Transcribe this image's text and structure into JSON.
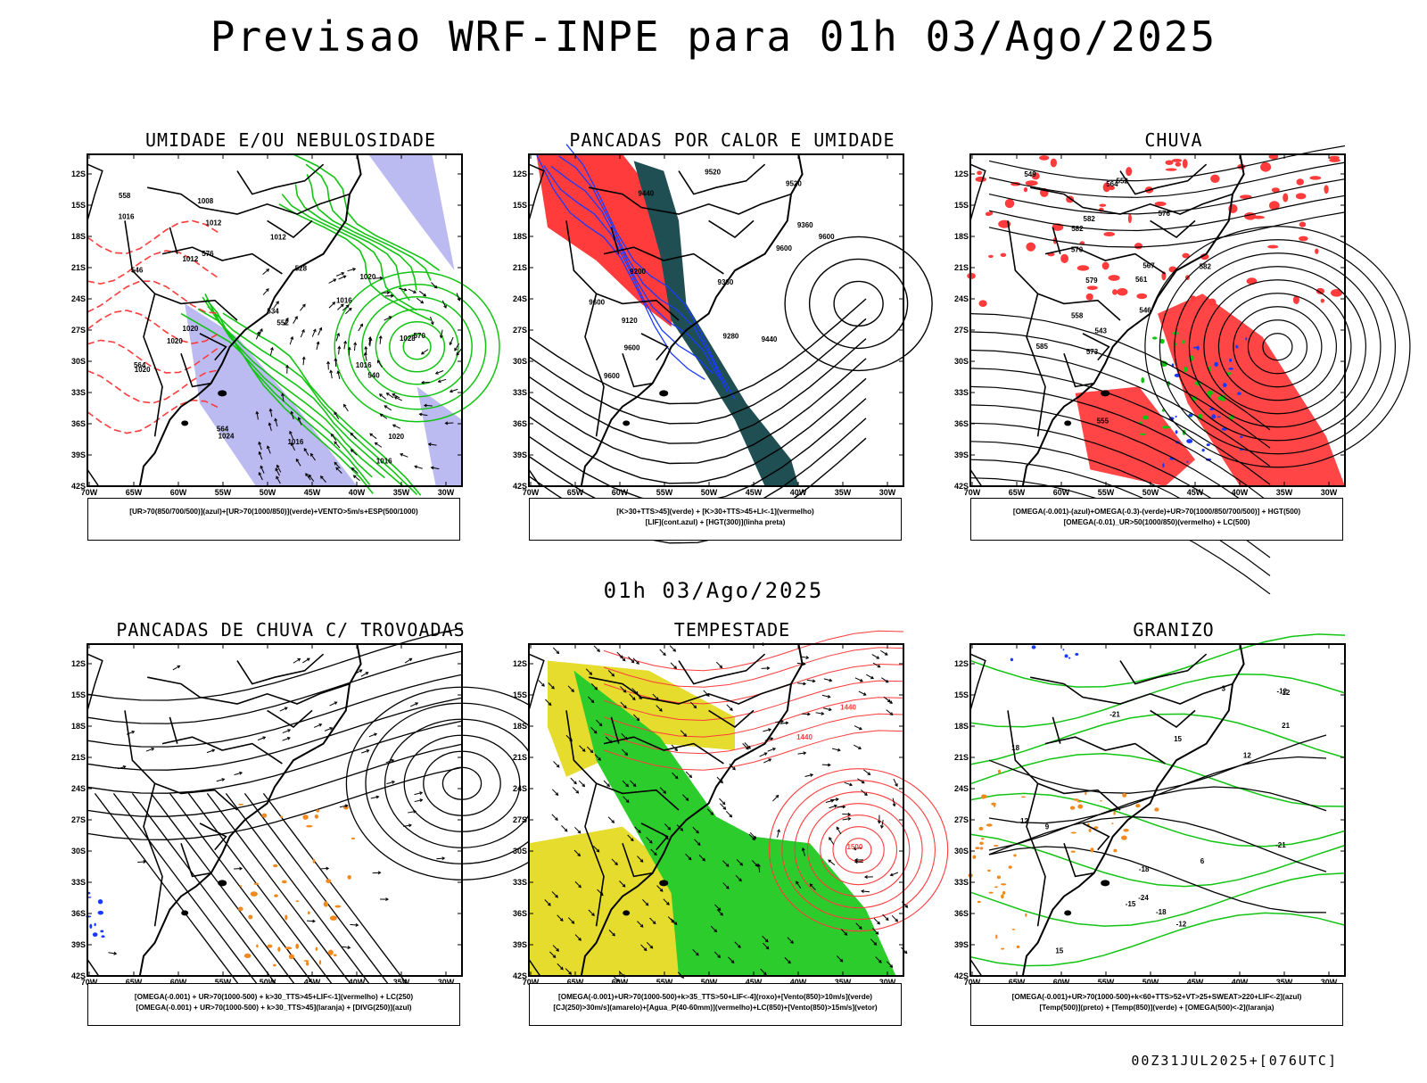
{
  "title": "Previsao WRF-INPE  para 01h 03/Ago/2025",
  "mid_date": "01h 03/Ago/2025",
  "run_stamp": "00Z31JUL2025+[076UTC]",
  "lat_labels": [
    "12S",
    "15S",
    "18S",
    "21S",
    "24S",
    "27S",
    "30S",
    "33S",
    "36S",
    "39S",
    "42S"
  ],
  "lon_labels": [
    "70W",
    "65W",
    "60W",
    "55W",
    "50W",
    "45W",
    "40W",
    "35W",
    "30W"
  ],
  "colors": {
    "red": "#ff3b3b",
    "green": "#12c412",
    "blue": "#1a3aff",
    "lavender": "#b4b4f0",
    "darkteal": "#1f4f52",
    "yellow": "#e6dc2e",
    "orange": "#f08a1e",
    "bright_green": "#2dcc2d"
  },
  "panels": [
    {
      "title": "UMIDADE E/OU NEBULOSIDADE",
      "legend": [
        "[UR>70(850/700/500)](azul)+[UR>70(1000/850)](verde)+VENTO>5m/s+ESP(500/1000)"
      ],
      "labels": [
        "1016",
        "1012",
        "1012",
        "1016",
        "1020",
        "1020",
        "1024",
        "1020",
        "1016",
        "1020",
        "1016",
        "1012",
        "1008",
        "1028",
        "1016",
        "1020",
        "564",
        "570",
        "576",
        "552",
        "546",
        "540",
        "534",
        "528",
        "558",
        "564"
      ]
    },
    {
      "title": "PANCADAS POR CALOR E UMIDADE",
      "legend": [
        "[K>30+TTS>45](verde) + [K>30+TTS>45+LI<-1](vermelho)",
        "[LIF](cont.azul) + [HGT(300)](linha preta)"
      ],
      "labels": [
        "9600",
        "9520",
        "9440",
        "9360",
        "9280",
        "9200",
        "9120",
        "9600",
        "9600",
        "9600",
        "9600",
        "9520",
        "9440",
        "9360"
      ]
    },
    {
      "title": "CHUVA",
      "legend": [
        "[OMEGA(-0.001)-(azul)+OMEGA(-0.3)-(verde)+UR>70(1000/850/700/500)] + HGT(500)",
        "[OMEGA(-0.01)_UR>50(1000/850)(vermelho) + LC(500)"
      ],
      "labels": [
        "585",
        "582",
        "579",
        "576",
        "573",
        "570",
        "567",
        "564",
        "561",
        "558",
        "555",
        "552",
        "549",
        "546",
        "543",
        "582",
        "582"
      ]
    },
    {
      "title": "PANCADAS DE CHUVA C/ TROVOADAS",
      "legend": [
        "[OMEGA(-0.001) + UR>70(1000-500) + k>30_TTS>45+LIF<-1](vermelho) + LC(250)",
        "[OMEGA(-0.001) + UR>70(1000-500) + k>30_TTS>45](laranja) + [DIVG(250)](azul)"
      ],
      "labels": []
    },
    {
      "title": "TEMPESTADE",
      "legend": [
        "[OMEGA(-0.001)+UR>70(1000-500)+k>35_TTS>50+LIF<-4](roxo)+[Vento(850)>10m/s](verde)",
        "[CJ(250)>30m/s](amarelo)+[Agua_P(40-60mm)](vermelho)+LC(850)+[Vento(850)>15m/s](vetor)"
      ],
      "labels": [
        "1440",
        "1440",
        "1500"
      ]
    },
    {
      "title": "GRANIZO",
      "legend": [
        "[OMEGA(-0.001)+UR>70(1000-500)+k<60+TTS>52+VT>25+SWEAT>220+LIF<-2](azul)",
        "[Temp(500)](preto) + [Temp(850)](verde) + [OMEGA(500)<-2](laranja)"
      ],
      "labels": [
        "-12",
        "-12",
        "-12",
        "-15",
        "-18",
        "-18",
        "-21",
        "-21",
        "-24",
        "12",
        "15",
        "18",
        "21",
        "3",
        "6",
        "9",
        "12",
        "15"
      ]
    }
  ]
}
